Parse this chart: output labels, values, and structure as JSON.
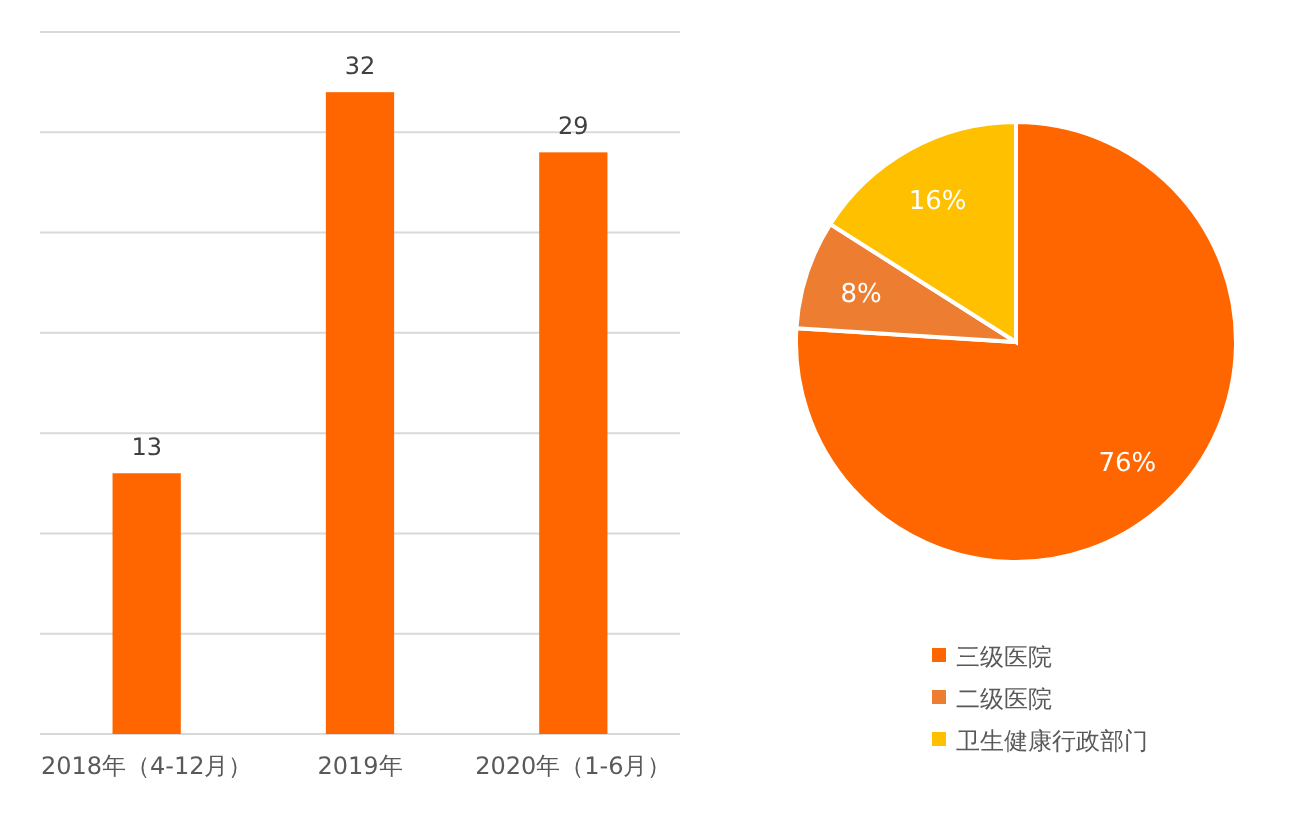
{
  "chart_data": [
    {
      "type": "bar",
      "categories": [
        "2018年（4-12月）",
        "2019年",
        "2020年（1-6月）"
      ],
      "values": [
        13,
        32,
        29
      ],
      "color": "#ff6600",
      "ylim": [
        0,
        35
      ],
      "yticks": [
        0,
        5,
        10,
        15,
        20,
        25,
        30,
        35
      ],
      "tick_labels": "x",
      "grid": "y",
      "data_labels": true
    },
    {
      "type": "pie",
      "categories": [
        "三级医院",
        "二级医院",
        "卫生健康行政部门"
      ],
      "values": [
        76,
        8,
        16
      ],
      "colors": [
        "#ff6600",
        "#ed7d31",
        "#ffc000"
      ],
      "value_labels": [
        "76%",
        "8%",
        "16%"
      ],
      "legend": "bottom"
    }
  ]
}
